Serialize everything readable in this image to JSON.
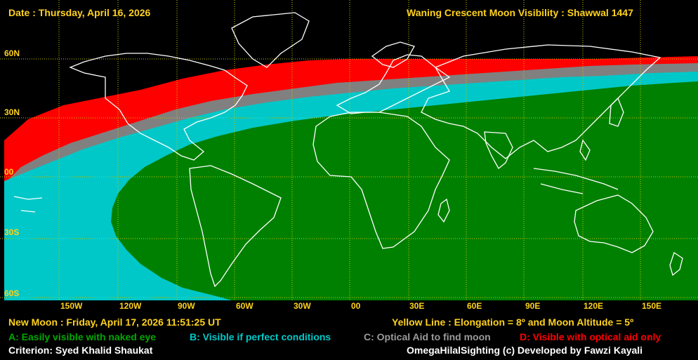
{
  "header": {
    "date": "Date : Thursday, April 16, 2026",
    "title": "Waning Crescent Moon Visibility : Shawwal 1447"
  },
  "map": {
    "lat_labels": [
      "60N",
      "30N",
      "00",
      "30S",
      "60S"
    ],
    "lon_labels": [
      "150W",
      "120W",
      "90W",
      "60W",
      "30W",
      "00",
      "30E",
      "60E",
      "90E",
      "120E",
      "150E"
    ],
    "zone_colors": {
      "A": "#008000",
      "B": "#00c8c8",
      "C": "#808080",
      "D": "#ff0000",
      "none": "#000000",
      "grid": "#c8c800",
      "coast": "#ffffff"
    }
  },
  "footer": {
    "new_moon": "New Moon : Friday, April 17, 2026  11:51:25  UT",
    "yellow_line": "Yellow Line : Elongation = 8º  and Moon Altitude = 5º",
    "legend": {
      "a": "A: Easily visible with naked eye",
      "b": "B: Visible if perfect conditions",
      "c": "C: Optical Aid to find moon",
      "d": "D: Visible with optical aid only"
    },
    "criterion": "Criterion: Syed Khalid Shaukat",
    "credit": "OmegaHilalSighting  (c)  Developed by Fawzi Kayali"
  }
}
